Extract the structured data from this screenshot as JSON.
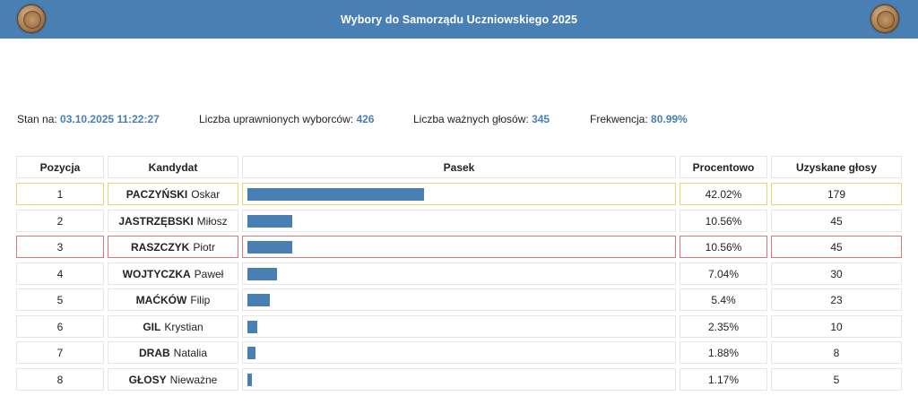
{
  "header": {
    "title": "Wybory do Samorządu Uczniowskiego 2025"
  },
  "stats": {
    "status_label": "Stan na:",
    "status_value": "03.10.2025 11:22:27",
    "eligible_label": "Liczba uprawnionych wyborców:",
    "eligible_value": "426",
    "valid_label": "Liczba ważnych głosów:",
    "valid_value": "345",
    "turnout_label": "Frekwencja:",
    "turnout_value": "80.99%"
  },
  "table": {
    "headers": {
      "position": "Pozycja",
      "candidate": "Kandydat",
      "bar": "Pasek",
      "percent": "Procentowo",
      "votes": "Uzyskane głosy"
    },
    "rows": [
      {
        "position": "1",
        "surname": "PACZYŃSKI",
        "first_name": "Oskar",
        "percent": "42.02%",
        "fraction": 0.4202,
        "votes": "179",
        "highlight": "gold"
      },
      {
        "position": "2",
        "surname": "JASTRZĘBSKI",
        "first_name": "Miłosz",
        "percent": "10.56%",
        "fraction": 0.1056,
        "votes": "45",
        "highlight": "none"
      },
      {
        "position": "3",
        "surname": "RASZCZYK",
        "first_name": "Piotr",
        "percent": "10.56%",
        "fraction": 0.1056,
        "votes": "45",
        "highlight": "red"
      },
      {
        "position": "4",
        "surname": "WOJTYCZKA",
        "first_name": "Paweł",
        "percent": "7.04%",
        "fraction": 0.0704,
        "votes": "30",
        "highlight": "none"
      },
      {
        "position": "5",
        "surname": "MAĆKÓW",
        "first_name": "Filip",
        "percent": "5.4%",
        "fraction": 0.054,
        "votes": "23",
        "highlight": "none"
      },
      {
        "position": "6",
        "surname": "GIL",
        "first_name": "Krystian",
        "percent": "2.35%",
        "fraction": 0.0235,
        "votes": "10",
        "highlight": "none"
      },
      {
        "position": "7",
        "surname": "DRAB",
        "first_name": "Natalia",
        "percent": "1.88%",
        "fraction": 0.0188,
        "votes": "8",
        "highlight": "none"
      },
      {
        "position": "8",
        "surname": "GŁOSY",
        "first_name": "Nieważne",
        "percent": "1.17%",
        "fraction": 0.0117,
        "votes": "5",
        "highlight": "none"
      }
    ]
  },
  "colors": {
    "header_bg": "#4a7fb3",
    "accent": "#4a7fb3",
    "bar": "#4a7fb3",
    "first_place_border": "#e8d770",
    "highlight_border": "#d9777b"
  }
}
